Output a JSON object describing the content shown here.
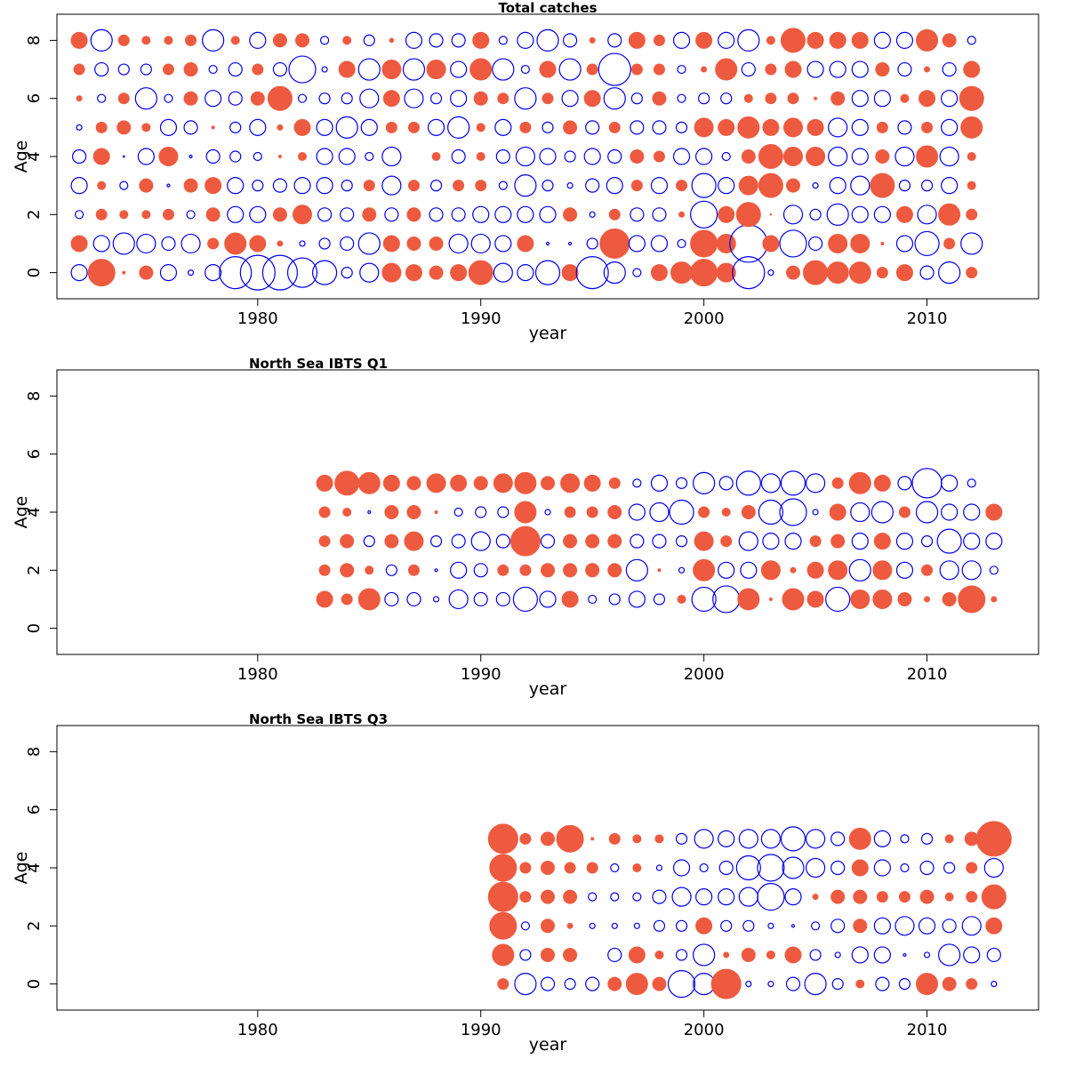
{
  "chart_data": [
    {
      "type": "scatter",
      "title": "Total catches",
      "xlabel": "year",
      "ylabel": "Age",
      "xlim": [
        1971,
        2015
      ],
      "ylim": [
        -0.9,
        8.9
      ],
      "x_ticks": [
        1980,
        1990,
        2000,
        2010
      ],
      "y_ticks": [
        0,
        2,
        4,
        6,
        8
      ],
      "x_tick_labels": [
        "1980",
        "1990",
        "2000",
        "2010"
      ],
      "y_tick_labels": [
        "0",
        "2",
        "4",
        "6",
        "8"
      ],
      "encoding": "bubble radius proportional to |residual|; filled red = positive, open blue = negative",
      "colors": {
        "positive": "#EE5A3F",
        "negative": "#0000EE"
      },
      "ages": [
        0,
        1,
        2,
        3,
        4,
        5,
        6,
        7,
        8
      ],
      "years": [
        1972,
        1973,
        1974,
        1975,
        1976,
        1977,
        1978,
        1979,
        1980,
        1981,
        1982,
        1983,
        1984,
        1985,
        1986,
        1987,
        1988,
        1989,
        1990,
        1991,
        1992,
        1993,
        1994,
        1995,
        1996,
        1997,
        1998,
        1999,
        2000,
        2001,
        2002,
        2003,
        2004,
        2005,
        2006,
        2007,
        2008,
        2009,
        2010,
        2011,
        2012
      ],
      "residuals": [
        [
          -0.6,
          1.0,
          0.1,
          0.5,
          -0.6,
          -0.2,
          -0.6,
          -1.2,
          -1.3,
          -1.3,
          -1.1,
          -0.9,
          -0.4,
          -0.7,
          0.7,
          0.6,
          0.5,
          0.6,
          0.9,
          -0.7,
          -0.6,
          -0.9,
          0.6,
          -1.2,
          -0.8,
          -0.3,
          0.6,
          0.8,
          1.0,
          0.7,
          -1.2,
          -0.2,
          0.5,
          0.9,
          0.8,
          0.8,
          0.4,
          0.6,
          -0.5,
          -0.8,
          0.4
        ],
        [
          0.6,
          -0.6,
          -0.8,
          -0.7,
          -0.5,
          -0.7,
          0.4,
          0.8,
          0.6,
          0.2,
          -0.2,
          -0.4,
          -0.5,
          -0.8,
          0.6,
          0.5,
          0.5,
          -0.7,
          -0.7,
          -0.6,
          0.6,
          -0.1,
          -0.1,
          -0.4,
          1.1,
          -0.6,
          -0.6,
          -0.3,
          1.0,
          0.7,
          -1.4,
          0.6,
          -1.0,
          -0.5,
          0.7,
          0.7,
          0.1,
          -0.6,
          -0.9,
          0.4,
          -0.8
        ],
        [
          -0.3,
          0.4,
          0.3,
          0.3,
          0.4,
          -0.3,
          0.5,
          -0.6,
          -0.6,
          0.5,
          0.7,
          -0.5,
          -0.5,
          0.5,
          -0.5,
          0.5,
          -0.5,
          -0.5,
          -0.6,
          -0.6,
          -0.6,
          -0.6,
          0.5,
          -0.2,
          0.4,
          -0.5,
          -0.5,
          0.2,
          -1.0,
          0.6,
          0.9,
          0.05,
          -0.7,
          -0.4,
          -0.8,
          -0.6,
          -0.6,
          0.6,
          -0.7,
          0.8,
          0.4
        ],
        [
          -0.6,
          0.3,
          -0.3,
          0.5,
          -0.1,
          0.5,
          0.6,
          -0.6,
          -0.4,
          -0.5,
          -0.6,
          -0.6,
          -0.4,
          0.4,
          -0.7,
          0.4,
          -0.4,
          0.4,
          0.4,
          -0.3,
          -0.8,
          -0.4,
          -0.2,
          -0.5,
          -0.6,
          0.4,
          -0.6,
          0.4,
          -0.9,
          -0.6,
          0.7,
          0.9,
          0.5,
          -0.2,
          -0.6,
          -0.7,
          0.9,
          -0.4,
          -0.4,
          -0.6,
          0.3
        ],
        [
          -0.5,
          0.6,
          -0.05,
          -0.6,
          0.7,
          -0.1,
          -0.5,
          -0.4,
          -0.3,
          0.1,
          0.3,
          -0.6,
          -0.6,
          -0.3,
          -0.7,
          -0.02,
          0.3,
          -0.5,
          0.3,
          -0.5,
          -0.7,
          -0.6,
          -0.4,
          -0.6,
          -0.5,
          0.5,
          0.4,
          -0.6,
          -0.6,
          -0.3,
          0.5,
          0.9,
          0.7,
          0.7,
          -0.7,
          -0.6,
          0.5,
          -0.7,
          0.8,
          -0.7,
          0.3
        ],
        [
          -0.2,
          0.4,
          0.5,
          0.3,
          -0.6,
          -0.5,
          0.1,
          -0.4,
          -0.6,
          0.2,
          0.6,
          -0.6,
          -0.8,
          -0.6,
          0.4,
          0.4,
          -0.6,
          -0.8,
          0.3,
          -0.6,
          0.4,
          -0.4,
          0.5,
          -0.5,
          0.4,
          -0.5,
          -0.5,
          -0.4,
          0.7,
          0.6,
          0.8,
          0.6,
          0.7,
          0.6,
          -0.7,
          -0.6,
          0.4,
          -0.5,
          0.4,
          -0.6,
          0.8
        ],
        [
          0.2,
          -0.3,
          0.4,
          -0.8,
          -0.3,
          0.5,
          -0.6,
          -0.5,
          0.5,
          0.9,
          -0.3,
          -0.4,
          -0.4,
          -0.7,
          0.6,
          -0.7,
          -0.4,
          -0.6,
          0.5,
          0.4,
          -0.8,
          0.4,
          -0.6,
          0.6,
          -0.8,
          -0.4,
          0.5,
          -0.3,
          -0.4,
          -0.4,
          0.3,
          0.4,
          0.4,
          0.1,
          0.5,
          -0.6,
          -0.6,
          0.3,
          0.6,
          -0.6,
          0.9
        ],
        [
          0.4,
          -0.5,
          -0.4,
          -0.4,
          0.4,
          0.5,
          -0.3,
          -0.5,
          0.4,
          -0.5,
          -1.0,
          -0.2,
          0.6,
          -0.8,
          0.7,
          -0.8,
          0.7,
          -0.6,
          0.8,
          -0.8,
          -0.3,
          0.6,
          -0.8,
          0.4,
          -1.2,
          0.4,
          0.4,
          -0.3,
          0.2,
          0.8,
          -0.5,
          0.4,
          0.6,
          -0.6,
          -0.6,
          -0.6,
          0.5,
          -0.5,
          0.2,
          -0.5,
          0.6
        ],
        [
          0.6,
          -0.8,
          0.4,
          0.3,
          0.3,
          0.4,
          -0.8,
          0.3,
          -0.6,
          0.5,
          0.5,
          -0.3,
          0.3,
          -0.4,
          0.15,
          -0.6,
          -0.5,
          -0.5,
          0.6,
          -0.3,
          -0.6,
          -0.8,
          -0.5,
          0.2,
          -0.5,
          0.6,
          0.4,
          -0.6,
          0.6,
          -0.6,
          -0.8,
          0.3,
          0.9,
          0.6,
          0.6,
          0.6,
          -0.6,
          -0.6,
          0.8,
          0.5,
          -0.3
        ]
      ]
    },
    {
      "type": "scatter",
      "title": "North Sea IBTS Q1",
      "xlabel": "year",
      "ylabel": "Age",
      "xlim": [
        1971,
        2015
      ],
      "ylim": [
        -0.9,
        8.9
      ],
      "x_ticks": [
        1980,
        1990,
        2000,
        2010
      ],
      "y_ticks": [
        0,
        2,
        4,
        6,
        8
      ],
      "x_tick_labels": [
        "1980",
        "1990",
        "2000",
        "2010"
      ],
      "y_tick_labels": [
        "0",
        "2",
        "4",
        "6",
        "8"
      ],
      "encoding": "bubble radius proportional to |residual|; filled red = positive, open blue = negative",
      "colors": {
        "positive": "#EE5A3F",
        "negative": "#0000EE"
      },
      "ages": [
        1,
        2,
        3,
        4,
        5
      ],
      "years": [
        1983,
        1984,
        1985,
        1986,
        1987,
        1988,
        1989,
        1990,
        1991,
        1992,
        1993,
        1994,
        1995,
        1996,
        1997,
        1998,
        1999,
        2000,
        2001,
        2002,
        2003,
        2004,
        2005,
        2006,
        2007,
        2008,
        2009,
        2010,
        2011,
        2012,
        2013
      ],
      "residuals": [
        [
          0.6,
          0.4,
          0.8,
          -0.5,
          -0.5,
          -0.2,
          -0.7,
          -0.5,
          -0.5,
          -0.9,
          -0.6,
          0.6,
          -0.3,
          -0.4,
          -0.6,
          -0.4,
          0.3,
          -0.9,
          -1.0,
          0.8,
          0.1,
          0.8,
          0.6,
          -0.9,
          0.7,
          0.7,
          0.5,
          0.2,
          0.5,
          1.0,
          0.2
        ],
        [
          0.4,
          0.5,
          0.3,
          -0.4,
          0.4,
          -0.1,
          -0.6,
          -0.5,
          0.4,
          0.4,
          0.5,
          0.5,
          0.5,
          0.5,
          -0.8,
          0.1,
          -0.2,
          0.8,
          -0.6,
          -0.6,
          0.7,
          0.2,
          0.6,
          0.7,
          -0.8,
          0.7,
          -0.6,
          0.4,
          -0.7,
          -0.7,
          -0.3
        ],
        [
          0.4,
          0.5,
          -0.4,
          0.5,
          0.7,
          -0.4,
          -0.5,
          -0.7,
          -0.5,
          1.1,
          -0.5,
          0.5,
          0.5,
          0.5,
          -0.5,
          -0.5,
          -0.4,
          0.7,
          0.4,
          -0.7,
          -0.6,
          -0.6,
          0.4,
          0.5,
          -0.6,
          0.6,
          -0.6,
          -0.4,
          -0.9,
          -0.6,
          -0.6
        ],
        [
          0.4,
          0.3,
          -0.1,
          0.5,
          0.5,
          0.1,
          -0.3,
          -0.4,
          -0.4,
          0.8,
          -0.2,
          0.4,
          0.4,
          0.5,
          -0.6,
          -0.7,
          -0.9,
          0.4,
          0.3,
          0.5,
          -0.9,
          -1.0,
          -0.2,
          0.6,
          -0.7,
          -0.8,
          0.4,
          -0.8,
          -0.6,
          -0.6,
          0.6
        ],
        [
          0.6,
          0.9,
          0.8,
          0.6,
          0.5,
          0.7,
          0.6,
          0.5,
          0.7,
          0.8,
          0.5,
          0.7,
          0.6,
          0.4,
          -0.3,
          -0.6,
          -0.4,
          -0.8,
          -0.5,
          -0.9,
          -0.7,
          -0.9,
          -0.7,
          0.4,
          0.8,
          0.6,
          -0.5,
          -1.1,
          -0.6,
          -0.3,
          0
        ]
      ]
    },
    {
      "type": "scatter",
      "title": "North Sea IBTS Q3",
      "xlabel": "year",
      "ylabel": "Age",
      "xlim": [
        1971,
        2015
      ],
      "ylim": [
        -0.9,
        8.9
      ],
      "x_ticks": [
        1980,
        1990,
        2000,
        2010
      ],
      "y_ticks": [
        0,
        2,
        4,
        6,
        8
      ],
      "x_tick_labels": [
        "1980",
        "1990",
        "2000",
        "2010"
      ],
      "y_tick_labels": [
        "0",
        "2",
        "4",
        "6",
        "8"
      ],
      "encoding": "bubble radius proportional to |residual|; filled red = positive, open blue = negative",
      "colors": {
        "positive": "#EE5A3F",
        "negative": "#0000EE"
      },
      "ages": [
        0,
        1,
        2,
        3,
        4,
        5
      ],
      "years": [
        1991,
        1992,
        1993,
        1994,
        1995,
        1996,
        1997,
        1998,
        1999,
        2000,
        2001,
        2002,
        2003,
        2004,
        2005,
        2006,
        2007,
        2008,
        2009,
        2010,
        2011,
        2012,
        2013
      ],
      "residuals": [
        [
          0.4,
          -0.8,
          -0.5,
          -0.4,
          -0.5,
          0.5,
          0.8,
          0.5,
          -1.0,
          -0.8,
          1.1,
          -0.2,
          -0.2,
          -0.5,
          -0.8,
          -0.4,
          0.3,
          -0.5,
          -0.4,
          0.8,
          0.5,
          0.4,
          -0.2
        ],
        [
          0.8,
          -0.4,
          0.5,
          0.5,
          0,
          -0.5,
          0.6,
          0.3,
          -0.4,
          -0.8,
          0.2,
          0.5,
          0.3,
          0.6,
          -0.4,
          -0.2,
          -0.6,
          -0.6,
          -0.1,
          -0.2,
          -0.8,
          -0.6,
          -0.5
        ],
        [
          1.0,
          -0.3,
          0.5,
          0.2,
          -0.2,
          -0.2,
          -0.2,
          -0.4,
          -0.4,
          0.6,
          -0.4,
          -0.4,
          -0.2,
          -0.1,
          -0.3,
          -0.5,
          0.5,
          -0.6,
          -0.7,
          -0.6,
          -0.5,
          -0.7,
          0.6
        ],
        [
          1.1,
          0.4,
          0.5,
          0.5,
          -0.3,
          -0.3,
          -0.3,
          -0.5,
          -0.7,
          -0.6,
          -0.6,
          -0.7,
          -1.0,
          -0.6,
          0.2,
          0.5,
          0.5,
          0.4,
          0.4,
          0.5,
          0.3,
          0.4,
          0.9
        ],
        [
          1.0,
          0.4,
          0.5,
          0.4,
          0.4,
          -0.3,
          0.3,
          -0.2,
          -0.6,
          -0.3,
          -0.5,
          -0.9,
          -1.0,
          -0.8,
          -0.7,
          -0.5,
          0.6,
          -0.6,
          -0.3,
          -0.5,
          -0.4,
          0.4,
          -0.7
        ],
        [
          1.1,
          0.4,
          0.5,
          1.0,
          0.1,
          0.4,
          0.3,
          0.3,
          -0.4,
          -0.7,
          -0.6,
          -0.7,
          -0.7,
          -0.9,
          -0.7,
          -0.5,
          0.8,
          -0.6,
          -0.3,
          -0.4,
          0.3,
          0.5,
          1.3
        ]
      ]
    }
  ]
}
